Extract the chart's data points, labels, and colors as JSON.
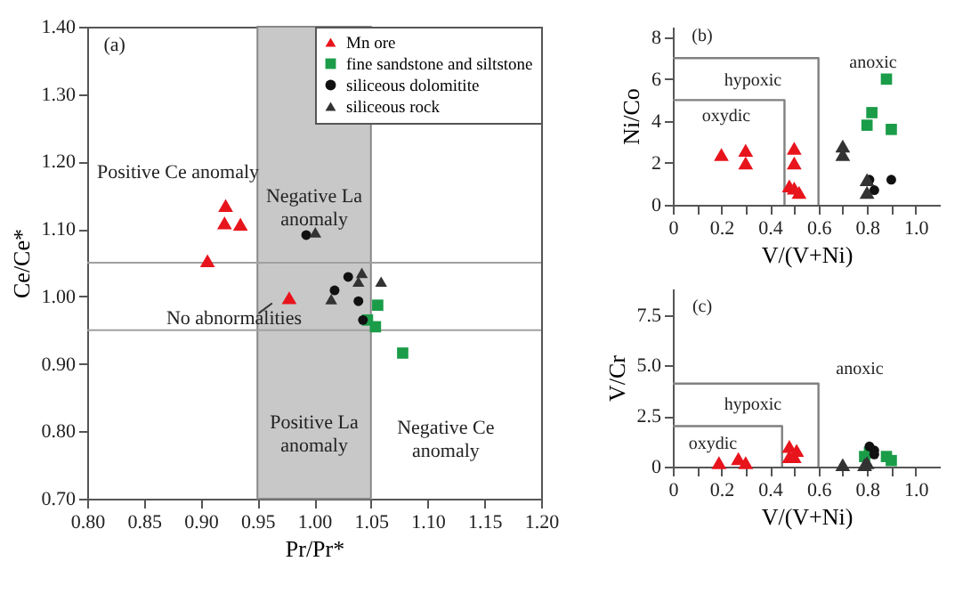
{
  "chart_data": [
    {
      "type": "scatter",
      "xlabel": "Pr/Pr*",
      "ylabel": "Ce/Ce*",
      "xlim": [
        0.8,
        1.2
      ],
      "ylim": [
        0.7,
        1.4
      ],
      "xticks": [
        {
          "value": 0.8,
          "label": "0.80"
        },
        {
          "value": 0.85,
          "label": "0.85"
        },
        {
          "value": 0.9,
          "label": "0.90"
        },
        {
          "value": 0.95,
          "label": "0.95"
        },
        {
          "value": 1.0,
          "label": "1.00"
        },
        {
          "value": 1.05,
          "label": "1.05"
        },
        {
          "value": 1.1,
          "label": "1.10"
        },
        {
          "value": 1.15,
          "label": "1.15"
        },
        {
          "value": 1.2,
          "label": "1.20"
        }
      ],
      "yticks": [
        {
          "value": 0.7,
          "label": "0.70"
        },
        {
          "value": 0.8,
          "label": "0.80"
        },
        {
          "value": 0.9,
          "label": "0.90"
        },
        {
          "value": 1.0,
          "label": "1.00"
        },
        {
          "value": 1.1,
          "label": "1.10"
        },
        {
          "value": 1.2,
          "label": "1.20"
        },
        {
          "value": 1.3,
          "label": "1.30"
        },
        {
          "value": 1.4,
          "label": "1.40"
        }
      ],
      "legend": "top right",
      "grid": false,
      "bands": [
        {
          "axis": "x",
          "from": 0.95,
          "to": 1.05,
          "color": "#c8c8c8"
        }
      ],
      "ref_lines": [
        {
          "axis": "y",
          "value": 1.05,
          "color": "#a0a0a0"
        },
        {
          "axis": "y",
          "value": 0.95,
          "color": "#a0a0a0"
        }
      ],
      "series": [
        {
          "name": "Mn  ore",
          "color": "#e8141c",
          "marker": "triangle",
          "x": [
            0.922,
            0.921,
            0.935,
            0.906,
            0.978
          ],
          "values": [
            1.135,
            1.109,
            1.107,
            1.053,
            0.998
          ]
        },
        {
          "name": "fine sandstone and siltstone",
          "color": "#1a9c48",
          "marker": "square",
          "x": [
            1.056,
            1.047,
            1.054,
            1.078
          ],
          "values": [
            0.987,
            0.965,
            0.955,
            0.916
          ]
        },
        {
          "name": "siliceous dolomitite",
          "color": "#111111",
          "marker": "circle",
          "x": [
            0.993,
            1.03,
            1.018,
            1.039,
            1.043
          ],
          "values": [
            1.091,
            1.029,
            1.009,
            0.993,
            0.965
          ]
        },
        {
          "name": "siliceous rock",
          "color": "#333333",
          "marker": "triangle",
          "x": [
            1.001,
            1.042,
            1.039,
            1.015,
            1.059
          ],
          "values": [
            1.095,
            1.035,
            1.022,
            0.996,
            1.022
          ]
        }
      ],
      "annotations": [
        "(a)",
        "Positive Ce anomaly",
        "Negative La\nanomaly",
        {
          "text": "No abnormalities",
          "x": 0.978,
          "y": 0.998
        },
        "Positive La\nanomaly",
        "Negative Ce\nanomaly"
      ]
    },
    {
      "type": "scatter",
      "xlabel": "V/(V+Ni)",
      "ylabel": "Ni/Co",
      "xlim": [
        0,
        1.1
      ],
      "ylim": [
        0,
        8.5
      ],
      "xticks": [
        0,
        {
          "value": 0.1,
          "label": null
        },
        0.2,
        {
          "value": 0.3,
          "label": null
        },
        0.4,
        {
          "value": 0.5,
          "label": null
        },
        0.6,
        {
          "value": 0.7,
          "label": null
        },
        0.8,
        {
          "value": 0.9,
          "label": null
        },
        {
          "value": 1.0,
          "label": "1.0"
        }
      ],
      "yticks": [
        0,
        2,
        4,
        6,
        8
      ],
      "grid": false,
      "series": [
        {
          "type": "line",
          "color": "#808080",
          "x": [
            0,
            0.46,
            0.46
          ],
          "values": [
            5,
            5,
            0
          ]
        },
        {
          "type": "line",
          "color": "#808080",
          "x": [
            0,
            0.6,
            0.6
          ],
          "values": [
            7,
            7,
            0
          ]
        },
        {
          "color": "#e8141c",
          "marker": "triangle",
          "x": [
            0.2,
            0.3,
            0.3,
            0.5,
            0.5,
            0.48,
            0.5,
            0.52
          ],
          "values": [
            2.4,
            2.6,
            2.0,
            2.7,
            2.0,
            0.9,
            0.8,
            0.6
          ]
        },
        {
          "color": "#1a9c48",
          "marker": "square",
          "x": [
            0.8,
            0.82,
            0.88,
            0.9
          ],
          "values": [
            3.8,
            4.4,
            6.0,
            3.6
          ]
        },
        {
          "color": "#111111",
          "marker": "circle",
          "x": [
            0.81,
            0.9,
            0.83
          ],
          "values": [
            1.2,
            1.2,
            0.7
          ]
        },
        {
          "color": "#333333",
          "marker": "triangle",
          "x": [
            0.7,
            0.7,
            0.8,
            0.8
          ],
          "values": [
            2.8,
            2.4,
            1.2,
            0.6
          ]
        }
      ],
      "annotations": [
        "(b)",
        "oxydic",
        "hypoxic",
        "anoxic"
      ]
    },
    {
      "type": "scatter",
      "xlabel": "V/(V+Ni)",
      "ylabel": "V/Cr",
      "xlim": [
        0,
        1.1
      ],
      "ylim": [
        0,
        8.8
      ],
      "xticks": [
        0,
        {
          "value": 0.1,
          "label": null
        },
        0.2,
        {
          "value": 0.3,
          "label": null
        },
        0.4,
        {
          "value": 0.5,
          "label": null
        },
        0.6,
        {
          "value": 0.7,
          "label": null
        },
        0.8,
        {
          "value": 0.9,
          "label": null
        },
        {
          "value": 1.0,
          "label": "1.0"
        }
      ],
      "yticks": [
        0,
        2.5,
        {
          "value": 5,
          "label": "5.0"
        },
        7.5
      ],
      "grid": false,
      "series": [
        {
          "type": "line",
          "color": "#808080",
          "x": [
            0,
            0.45,
            0.45
          ],
          "values": [
            2,
            2,
            0
          ]
        },
        {
          "type": "line",
          "color": "#808080",
          "x": [
            0,
            0.6,
            0.6
          ],
          "values": [
            4.1,
            4.1,
            0
          ]
        },
        {
          "color": "#e8141c",
          "marker": "triangle",
          "x": [
            0.19,
            0.27,
            0.3,
            0.48,
            0.48,
            0.5,
            0.51
          ],
          "values": [
            0.2,
            0.4,
            0.2,
            1.0,
            0.5,
            0.5,
            0.8
          ]
        },
        {
          "color": "#1a9c48",
          "marker": "square",
          "x": [
            0.79,
            0.81,
            0.88,
            0.9
          ],
          "values": [
            0.5,
            0.7,
            0.5,
            0.3
          ]
        },
        {
          "color": "#111111",
          "marker": "circle",
          "x": [
            0.81,
            0.83,
            0.83
          ],
          "values": [
            1.0,
            0.8,
            0.6
          ]
        },
        {
          "color": "#333333",
          "marker": "triangle",
          "x": [
            0.7,
            0.79,
            0.8
          ],
          "values": [
            0.1,
            0.1,
            0.2
          ]
        }
      ],
      "annotations": [
        "(c)",
        "anoxic",
        "hypoxic",
        "oxydic"
      ]
    }
  ]
}
